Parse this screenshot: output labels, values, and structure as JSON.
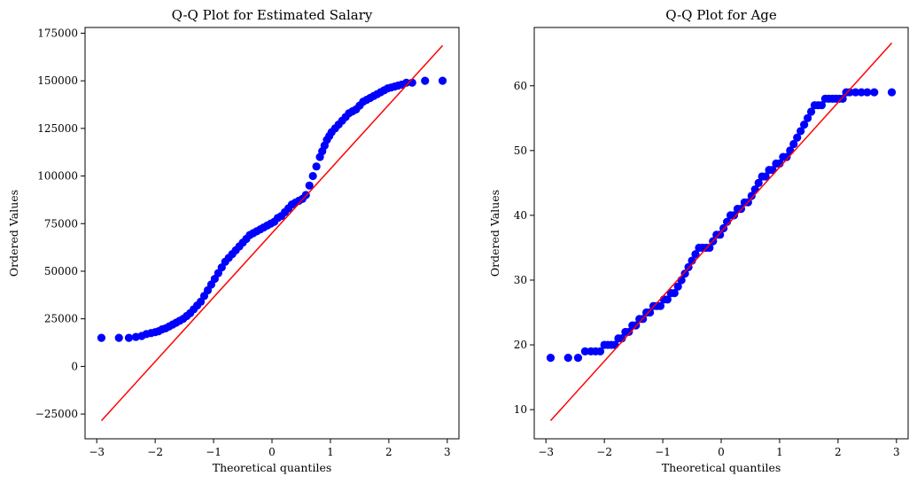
{
  "chart_data": [
    {
      "type": "scatter",
      "title": "Q-Q Plot for Estimated Salary",
      "xlabel": "Theoretical quantiles",
      "ylabel": "Ordered Values",
      "xlim": [
        -3.2,
        3.2
      ],
      "ylim": [
        -38000,
        178000
      ],
      "xticks": [
        -3,
        -2,
        -1,
        0,
        1,
        2,
        3
      ],
      "yticks": [
        -25000,
        0,
        25000,
        50000,
        75000,
        100000,
        125000,
        150000,
        175000
      ],
      "grid": false,
      "point_color": "#0000ff",
      "line_color": "#ff0000",
      "fit_line": {
        "x": [
          -2.92,
          2.92
        ],
        "y": [
          -28500,
          168500
        ]
      },
      "series": [
        {
          "x": [
            -2.92,
            -2.62,
            -2.45,
            -2.33,
            -2.23,
            -2.15,
            -2.07,
            -2.0,
            -1.94,
            -1.88,
            -1.82,
            -1.76,
            -1.7,
            -1.64,
            -1.58,
            -1.52,
            -1.46,
            -1.4,
            -1.34,
            -1.28,
            -1.22,
            -1.16,
            -1.1,
            -1.04,
            -0.98,
            -0.92,
            -0.86,
            -0.8,
            -0.74,
            -0.68,
            -0.62,
            -0.56,
            -0.5,
            -0.44,
            -0.38,
            -0.32,
            -0.26,
            -0.2,
            -0.14,
            -0.08,
            -0.02,
            0.04,
            0.1,
            0.16,
            0.22,
            0.28,
            0.34,
            0.4,
            0.46,
            0.52,
            0.58,
            0.64,
            0.7,
            0.76,
            0.82,
            0.86,
            0.9,
            0.94,
            0.98,
            1.02,
            1.08,
            1.14,
            1.2,
            1.26,
            1.32,
            1.38,
            1.44,
            1.5,
            1.56,
            1.62,
            1.68,
            1.74,
            1.8,
            1.86,
            1.92,
            1.98,
            2.04,
            2.1,
            2.16,
            2.22,
            2.3,
            2.4,
            2.62,
            2.92
          ],
          "y": [
            15000,
            15000,
            15000,
            15500,
            16000,
            17000,
            17500,
            18000,
            18500,
            19500,
            20000,
            21000,
            22000,
            23000,
            24000,
            25000,
            26500,
            28000,
            30000,
            32000,
            34000,
            37000,
            40000,
            43000,
            46000,
            49000,
            52000,
            55000,
            57000,
            59000,
            61000,
            63000,
            65000,
            67000,
            69000,
            70000,
            71000,
            72000,
            73000,
            74000,
            75000,
            76000,
            78000,
            79000,
            81000,
            83000,
            85000,
            86000,
            87000,
            88000,
            90000,
            95000,
            100000,
            105000,
            110000,
            113000,
            116000,
            119000,
            121000,
            123000,
            125000,
            127000,
            129000,
            131000,
            133000,
            134000,
            135000,
            137000,
            139000,
            140000,
            141000,
            142000,
            143000,
            144000,
            145000,
            146000,
            146500,
            147000,
            147500,
            148000,
            149000,
            149000,
            150000,
            150000
          ]
        }
      ]
    },
    {
      "type": "scatter",
      "title": "Q-Q Plot for Age",
      "xlabel": "Theoretical quantiles",
      "ylabel": "Ordered Values",
      "xlim": [
        -3.2,
        3.2
      ],
      "ylim": [
        5.5,
        69
      ],
      "xticks": [
        -3,
        -2,
        -1,
        0,
        1,
        2,
        3
      ],
      "yticks": [
        10,
        20,
        30,
        40,
        50,
        60
      ],
      "grid": false,
      "point_color": "#0000ff",
      "line_color": "#ff0000",
      "fit_line": {
        "x": [
          -2.92,
          2.92
        ],
        "y": [
          8.3,
          66.6
        ]
      },
      "series": [
        {
          "x": [
            -2.92,
            -2.62,
            -2.45,
            -2.33,
            -2.23,
            -2.15,
            -2.07,
            -2.0,
            -1.94,
            -1.88,
            -1.82,
            -1.76,
            -1.7,
            -1.64,
            -1.58,
            -1.52,
            -1.46,
            -1.4,
            -1.34,
            -1.28,
            -1.22,
            -1.16,
            -1.1,
            -1.04,
            -0.98,
            -0.92,
            -0.86,
            -0.8,
            -0.74,
            -0.68,
            -0.62,
            -0.56,
            -0.5,
            -0.44,
            -0.38,
            -0.32,
            -0.26,
            -0.2,
            -0.14,
            -0.08,
            -0.02,
            0.04,
            0.1,
            0.16,
            0.22,
            0.28,
            0.34,
            0.4,
            0.46,
            0.52,
            0.58,
            0.64,
            0.7,
            0.76,
            0.82,
            0.88,
            0.94,
            1.0,
            1.06,
            1.12,
            1.18,
            1.24,
            1.3,
            1.36,
            1.42,
            1.48,
            1.54,
            1.6,
            1.66,
            1.72,
            1.78,
            1.84,
            1.9,
            1.96,
            2.02,
            2.08,
            2.14,
            2.2,
            2.3,
            2.4,
            2.5,
            2.62,
            2.92
          ],
          "y": [
            18,
            18,
            18,
            19,
            19,
            19,
            19,
            20,
            20,
            20,
            20,
            21,
            21,
            22,
            22,
            23,
            23,
            24,
            24,
            25,
            25,
            26,
            26,
            26,
            27,
            27,
            28,
            28,
            29,
            30,
            31,
            32,
            33,
            34,
            35,
            35,
            35,
            35,
            36,
            37,
            37,
            38,
            39,
            40,
            40,
            41,
            41,
            42,
            42,
            43,
            44,
            45,
            46,
            46,
            47,
            47,
            48,
            48,
            49,
            49,
            50,
            51,
            52,
            53,
            54,
            55,
            56,
            57,
            57,
            57,
            58,
            58,
            58,
            58,
            58,
            58,
            59,
            59,
            59,
            59,
            59,
            59,
            59
          ]
        }
      ]
    }
  ]
}
